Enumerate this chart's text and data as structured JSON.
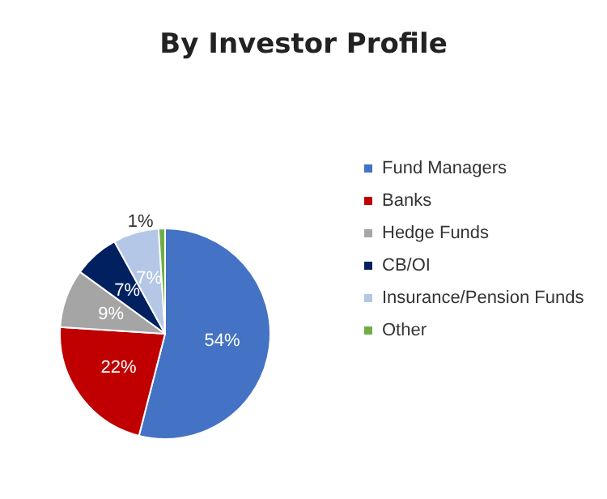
{
  "chart_data": {
    "type": "pie",
    "title": "By Investor Profile",
    "categories": [
      "Fund Managers",
      "Banks",
      "Hedge Funds",
      "CB/OI",
      "Insurance/Pension Funds",
      "Other"
    ],
    "values": [
      54,
      22,
      9,
      7,
      7,
      1
    ],
    "colors": [
      "#4472c4",
      "#c00000",
      "#a5a5a5",
      "#002060",
      "#b4c7e7",
      "#70ad47"
    ],
    "value_labels": [
      "54%",
      "22%",
      "9%",
      "7%",
      "7%",
      "1%"
    ],
    "legend": "right"
  }
}
